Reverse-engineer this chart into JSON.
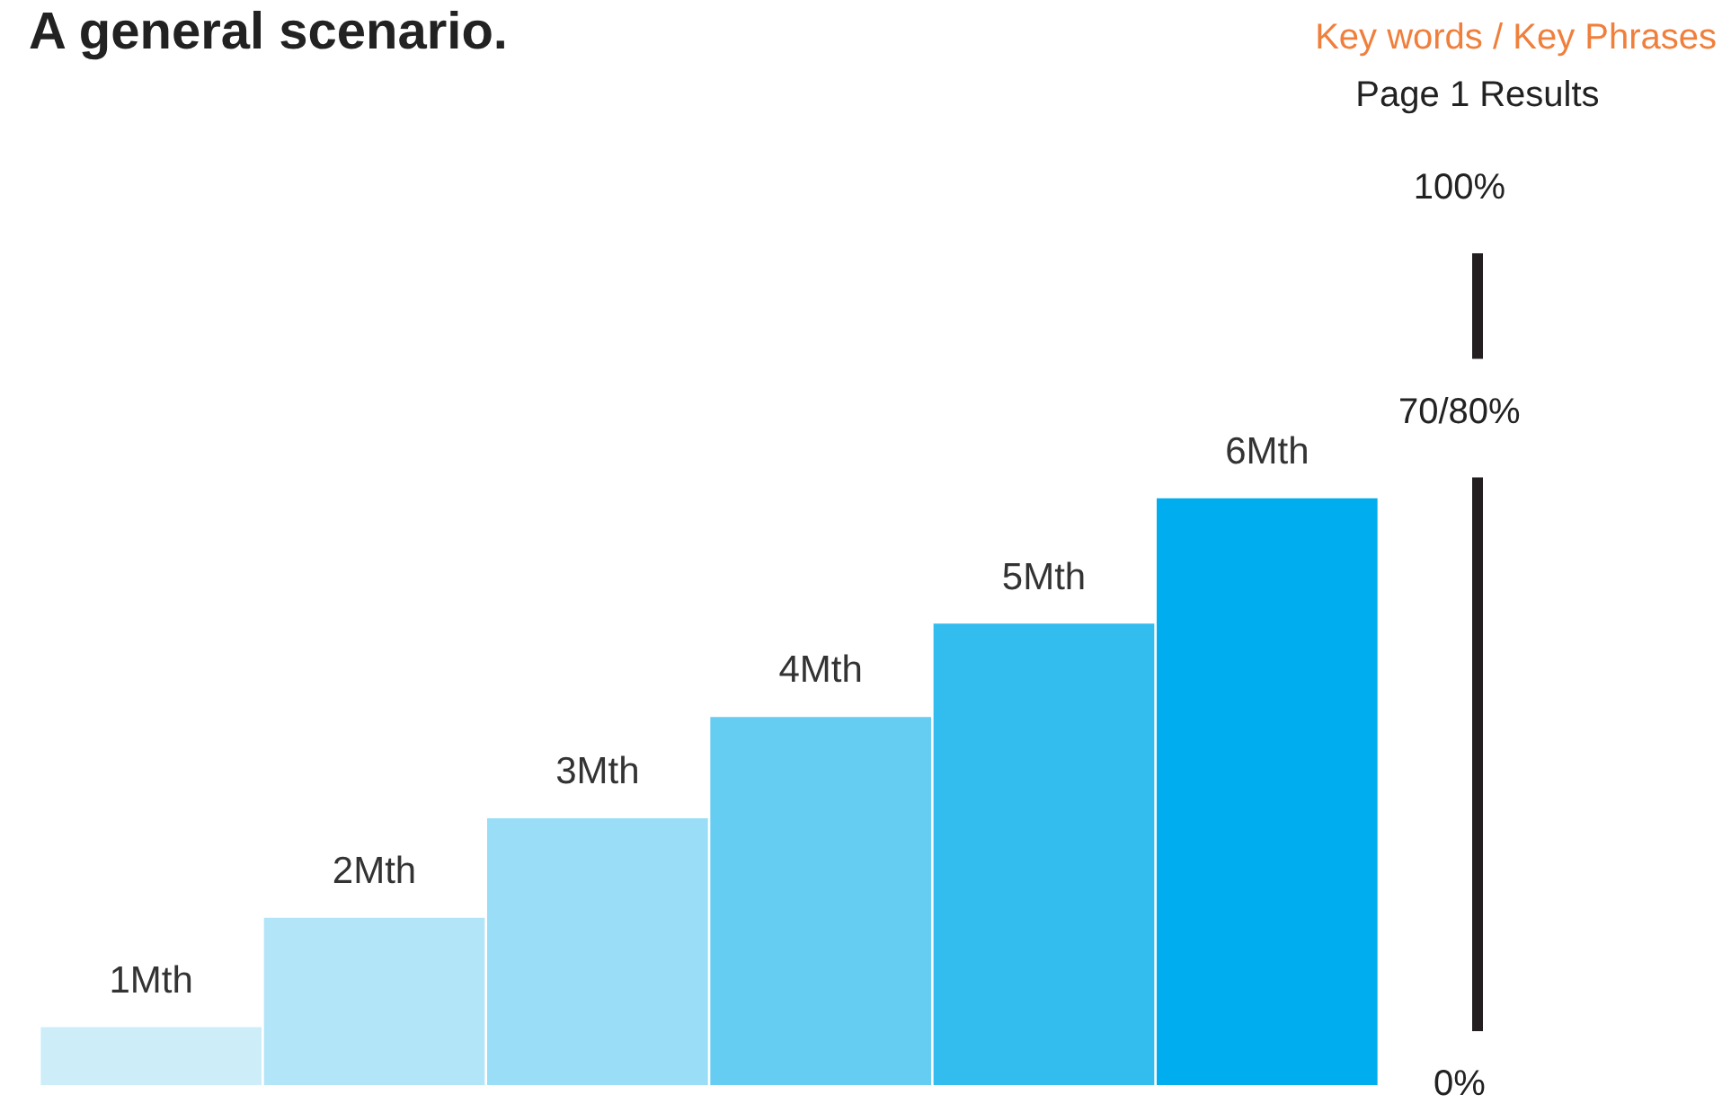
{
  "chart_data": {
    "type": "bar",
    "title": "A general scenario.",
    "subtitle": "Key words / Key Phrases",
    "ylabel": "Page 1 Results",
    "categories": [
      "1Mth",
      "2Mth",
      "3Mth",
      "4Mth",
      "5Mth",
      "6Mth"
    ],
    "values": [
      6.6,
      18.8,
      29.9,
      41.2,
      51.6,
      65.6
    ],
    "colors": [
      "#cdeef9",
      "#b3e5f8",
      "#99ddf6",
      "#66cdf2",
      "#33bdef",
      "#00aeef"
    ],
    "ylim": [
      0,
      100
    ],
    "yticks": [
      {
        "value": 0,
        "label": "0%"
      },
      {
        "value": 75,
        "label": "70/80%"
      },
      {
        "value": 100,
        "label": "100%"
      }
    ],
    "grid": false,
    "legend": false
  }
}
